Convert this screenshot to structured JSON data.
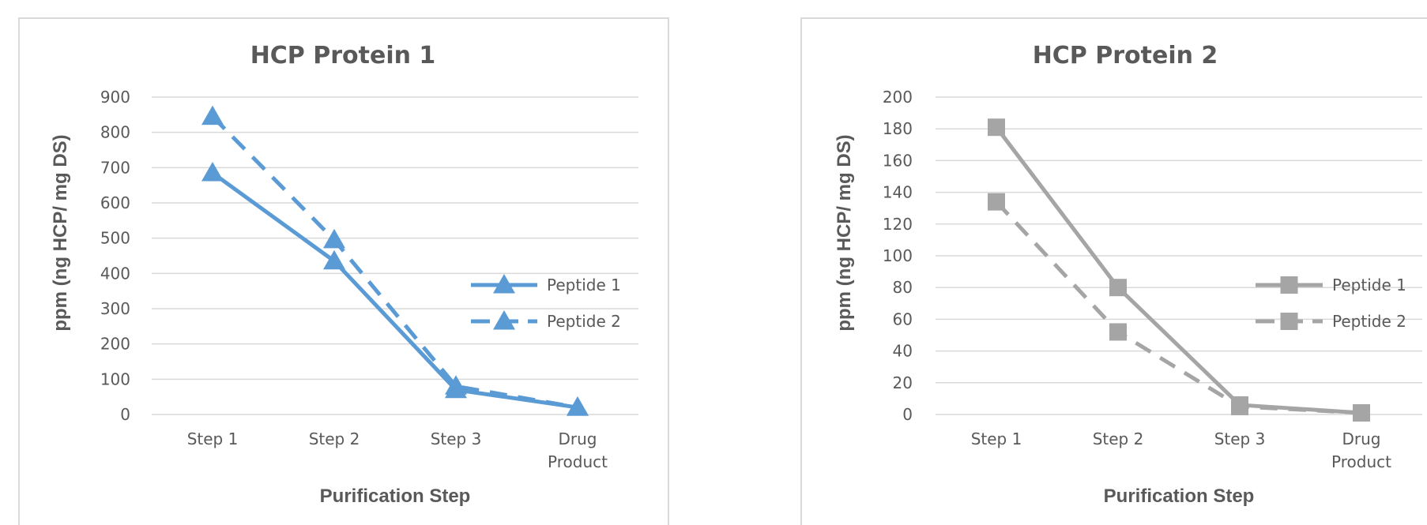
{
  "chart_data": [
    {
      "type": "line",
      "title": "HCP Protein 1",
      "xlabel": "Purification Step",
      "ylabel": "ppm (ng HCP/ mg DS)",
      "categories": [
        [
          "Step 1"
        ],
        [
          "Step 2"
        ],
        [
          "Step 3"
        ],
        [
          "Drug",
          "Product"
        ]
      ],
      "ylim": [
        0,
        900
      ],
      "yticks": [
        0,
        100,
        200,
        300,
        400,
        500,
        600,
        700,
        800,
        900
      ],
      "grid": true,
      "legend_position": "right",
      "marker": "triangle",
      "color": "#5b9bd5",
      "series": [
        {
          "name": "Peptide 1",
          "style": "solid",
          "values": [
            685,
            435,
            70,
            20
          ]
        },
        {
          "name": "Peptide 2",
          "style": "dashed",
          "values": [
            845,
            495,
            80,
            20
          ]
        }
      ]
    },
    {
      "type": "line",
      "title": "HCP Protein 2",
      "xlabel": "Purification Step",
      "ylabel": "ppm (ng HCP/ mg DS)",
      "categories": [
        [
          "Step 1"
        ],
        [
          "Step 2"
        ],
        [
          "Step 3"
        ],
        [
          "Drug",
          "Product"
        ]
      ],
      "ylim": [
        0,
        200
      ],
      "yticks": [
        0,
        20,
        40,
        60,
        80,
        100,
        120,
        140,
        160,
        180,
        200
      ],
      "grid": true,
      "legend_position": "right",
      "marker": "square",
      "color": "#a5a5a5",
      "series": [
        {
          "name": "Peptide 1",
          "style": "solid",
          "values": [
            181,
            80,
            6,
            1
          ]
        },
        {
          "name": "Peptide 2",
          "style": "dashed",
          "values": [
            134,
            52,
            5,
            1
          ]
        }
      ]
    }
  ]
}
